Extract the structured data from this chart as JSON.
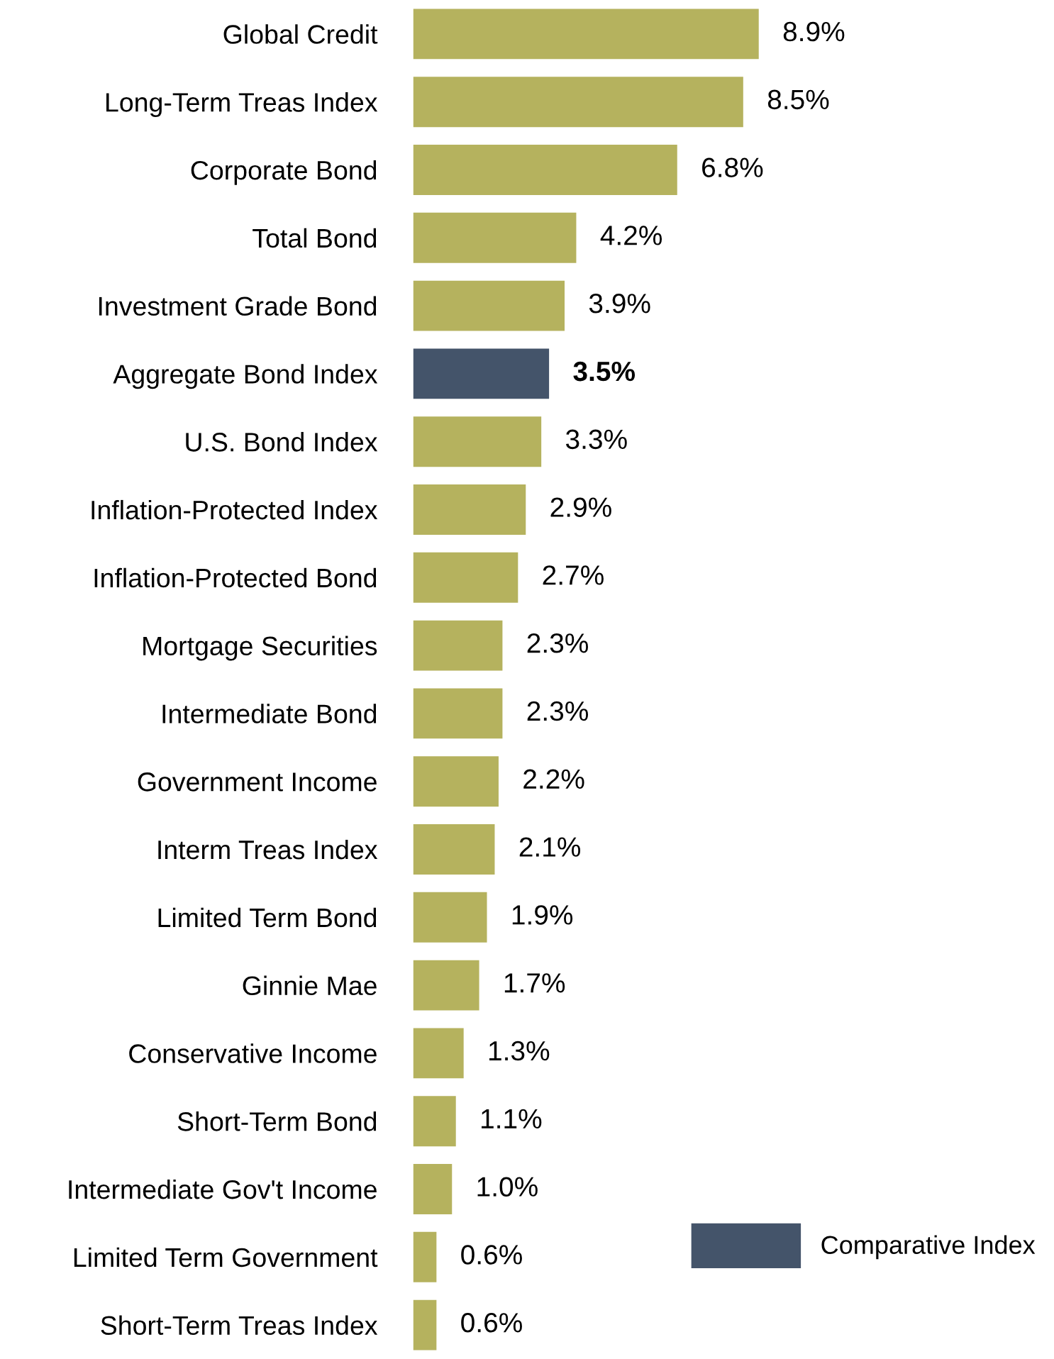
{
  "chart_data": {
    "type": "bar",
    "orientation": "horizontal",
    "categories": [
      "Global Credit",
      "Long-Term Treas Index",
      "Corporate Bond",
      "Total Bond",
      "Investment Grade Bond",
      "Aggregate Bond Index",
      "U.S. Bond Index",
      "Inflation-Protected Index",
      "Inflation-Protected Bond",
      "Mortgage Securities",
      "Intermediate Bond",
      "Government Income",
      "Interm Treas Index",
      "Limited Term Bond",
      "Ginnie Mae",
      "Conservative Income",
      "Short-Term Bond",
      "Intermediate Gov't Income",
      "Limited Term Government",
      "Short-Term Treas Index"
    ],
    "series": [
      {
        "color": "#b5b25e",
        "values": [
          8.9,
          8.5,
          6.8,
          4.2,
          3.9,
          null,
          3.3,
          2.9,
          2.7,
          2.3,
          2.3,
          2.2,
          2.1,
          1.9,
          1.7,
          1.3,
          1.1,
          1.0,
          0.6,
          0.6
        ],
        "value_labels": [
          "8.9%",
          "8.5%",
          "6.8%",
          "4.2%",
          "3.9%",
          null,
          "3.3%",
          "2.9%",
          "2.7%",
          "2.3%",
          "2.3%",
          "2.2%",
          "2.1%",
          "1.9%",
          "1.7%",
          "1.3%",
          "1.1%",
          "1.0%",
          "0.6%",
          "0.6%"
        ]
      },
      {
        "name": "Comparative Index",
        "color": "#44546a",
        "values": [
          null,
          null,
          null,
          null,
          null,
          3.5,
          null,
          null,
          null,
          null,
          null,
          null,
          null,
          null,
          null,
          null,
          null,
          null,
          null,
          null
        ],
        "value_labels": [
          null,
          null,
          null,
          null,
          null,
          "3.5%",
          null,
          null,
          null,
          null,
          null,
          null,
          null,
          null,
          null,
          null,
          null,
          null,
          null,
          null
        ]
      }
    ],
    "legend": "bottom right",
    "grid": false
  }
}
